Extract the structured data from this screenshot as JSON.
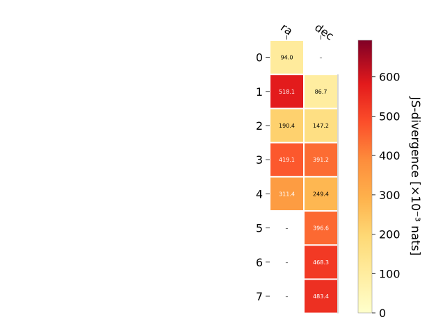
{
  "chart_data": {
    "type": "heatmap",
    "title": "",
    "columns": [
      "ra",
      "dec"
    ],
    "rows": [
      "0",
      "1",
      "2",
      "3",
      "4",
      "5",
      "6",
      "7"
    ],
    "values": [
      [
        94.0,
        null
      ],
      [
        518.1,
        86.7
      ],
      [
        190.4,
        147.2
      ],
      [
        419.1,
        391.2
      ],
      [
        311.4,
        249.4
      ],
      [
        null,
        396.6
      ],
      [
        null,
        468.3
      ],
      [
        null,
        483.4
      ]
    ],
    "labels": [
      [
        "94.0",
        "–"
      ],
      [
        "518.1",
        "86.7"
      ],
      [
        "190.4",
        "147.2"
      ],
      [
        "419.1",
        "391.2"
      ],
      [
        "311.4",
        "249.4"
      ],
      [
        "–",
        "396.6"
      ],
      [
        "–",
        "468.3"
      ],
      [
        "–",
        "483.4"
      ]
    ],
    "colormap": "YlOrRd",
    "colorbar": {
      "label": "JS-divergence [×10⁻³ nats]",
      "range": [
        0,
        693
      ],
      "ticks": [
        0,
        100,
        200,
        300,
        400,
        500,
        600
      ],
      "tick_labels": [
        "0",
        "100",
        "200",
        "300",
        "400",
        "500",
        "600"
      ]
    },
    "grid": false,
    "legend": "colorbar-right"
  }
}
